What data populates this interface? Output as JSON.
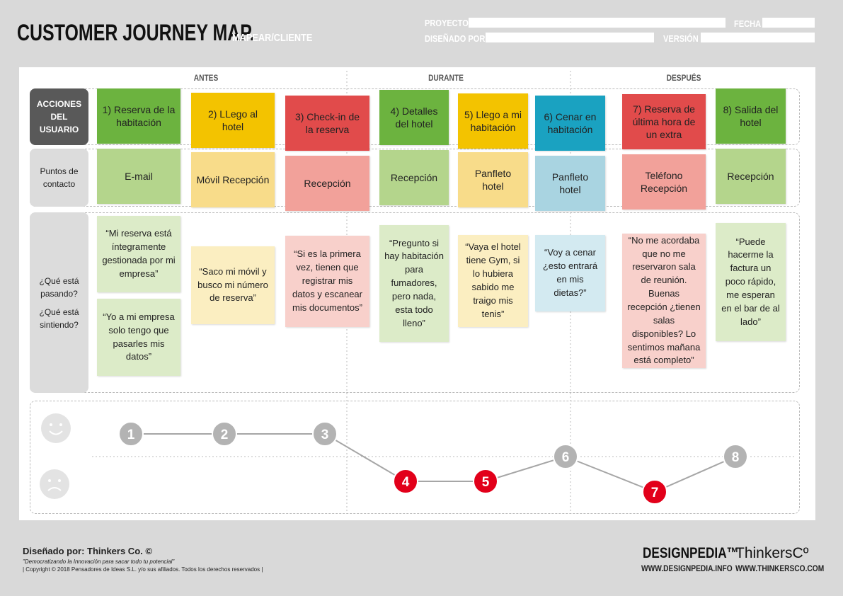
{
  "header": {
    "title": "CUSTOMER JOURNEY MAP.",
    "subtitle": "MAPEAR/CLIENTE",
    "fields": [
      "PROYECTO",
      "FECHA",
      "DISEÑADO POR",
      "VERSIÓN"
    ]
  },
  "phases": [
    "ANTES",
    "DURANTE",
    "DESPUÉS"
  ],
  "row_labels": [
    "ACCIONES DEL USUARIO",
    "Puntos de contacto",
    "¿Qué está pasando?",
    "¿Qué está sintiendo?"
  ],
  "actions": [
    {
      "text": "1) Reserva de la habitación",
      "color": "#6cb33f"
    },
    {
      "text": "2) LLego al hotel",
      "color": "#f3c300"
    },
    {
      "text": "3) Check-in de la reserva",
      "color": "#e14b4b"
    },
    {
      "text": "4) Detalles del hotel",
      "color": "#6cb33f"
    },
    {
      "text": "5) Llego a mi habitación",
      "color": "#f3c300"
    },
    {
      "text": "6) Cenar en habitación",
      "color": "#1aa2c1"
    },
    {
      "text": "7) Reserva de última hora de un extra",
      "color": "#e14b4b"
    },
    {
      "text": "8) Salida del hotel",
      "color": "#6cb33f"
    }
  ],
  "touchpoints": [
    {
      "text": "E-mail",
      "color": "#b4d58c"
    },
    {
      "text": "Móvil Recepción",
      "color": "#f8dc8a"
    },
    {
      "text": "Recepción",
      "color": "#f2a19a"
    },
    {
      "text": "Recepción",
      "color": "#b4d58c"
    },
    {
      "text": "Panfleto hotel",
      "color": "#f8dc8a"
    },
    {
      "text": "Panfleto hotel",
      "color": "#a9d4e1"
    },
    {
      "text": "Teléfono Recepción",
      "color": "#f2a19a"
    },
    {
      "text": "Recepción",
      "color": "#b4d58c"
    }
  ],
  "thoughts": [
    {
      "color": "#dcebc8",
      "notes": [
        "“Mi reserva está íntegramente gestionada por mi empresa”",
        "“Yo a mi empresa solo tengo que pasarles mis datos”"
      ]
    },
    {
      "color": "#fbeec1",
      "notes": [
        "“Saco mi móvil y busco mi número de reserva”"
      ]
    },
    {
      "color": "#f8d0cb",
      "notes": [
        "“Si es la primera vez, tienen que registrar mis datos y escanear mis documentos”"
      ]
    },
    {
      "color": "#dcebc8",
      "notes": [
        "“Pregunto si hay habitación para fumadores, pero nada, esta todo lleno”"
      ]
    },
    {
      "color": "#fbeec1",
      "notes": [
        "“Vaya el hotel tiene Gym, si lo hubiera sabido me traigo mis tenis”"
      ]
    },
    {
      "color": "#d3eaf1",
      "notes": [
        "“Voy a cenar ¿esto entrará en mis dietas?”"
      ]
    },
    {
      "color": "#f8d0cb",
      "notes": [
        "“No me acordaba que no me reservaron sala de reunión. Buenas recepción ¿tienen salas disponibles? Lo sentimos mañana está completo”"
      ]
    },
    {
      "color": "#dcebc8",
      "notes": [
        "“Puede hacerme la factura un poco rápido, me esperan en el bar de al lado”"
      ]
    }
  ],
  "emotion": [
    {
      "label": "1",
      "color": "#b3b3b3"
    },
    {
      "label": "2",
      "color": "#b3b3b3"
    },
    {
      "label": "3",
      "color": "#b3b3b3"
    },
    {
      "label": "4",
      "color": "#e2001a"
    },
    {
      "label": "5",
      "color": "#e2001a"
    },
    {
      "label": "6",
      "color": "#b3b3b3"
    },
    {
      "label": "7",
      "color": "#e2001a"
    },
    {
      "label": "8",
      "color": "#b3b3b3"
    }
  ],
  "footer": {
    "designed_by": "Diseñado por: Thinkers Co. ©",
    "motto": "\"Democratizando la Innovación para sacar todo tu potencial\"",
    "copyright": "| Copyright © 2018 Pensadores de Ideas S.L. y/o sus afiliados. Todos los derechos reservados |",
    "brand1": "DESIGNPEDIA™",
    "url1": "WWW.DESIGNPEDIA.INFO",
    "brand2": "ThinkersCº",
    "url2": "WWW.THINKERSCO.COM"
  }
}
